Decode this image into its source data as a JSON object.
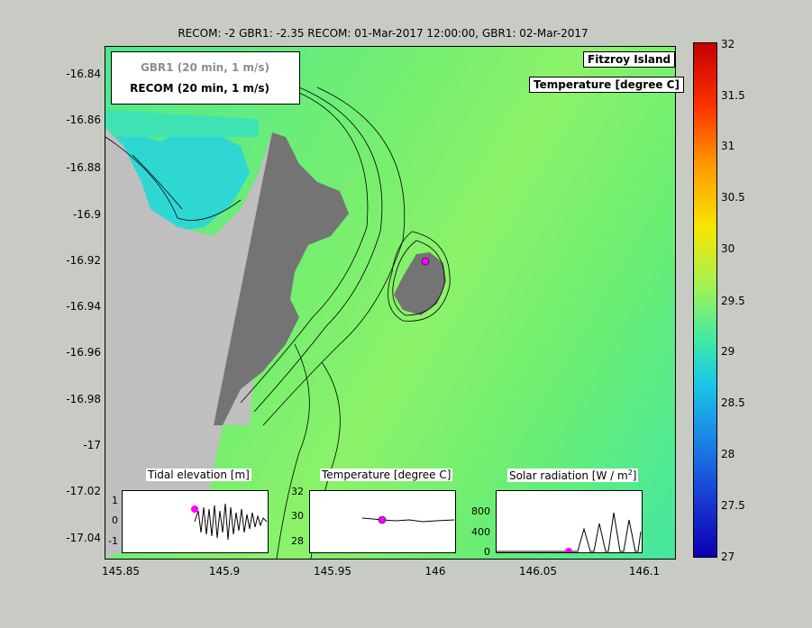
{
  "title": "RECOM: -2 GBR1: -2.35 RECOM: 01-Mar-2017 12:00:00, GBR1: 02-Mar-2017",
  "map": {
    "yticks": [
      "-16.84",
      "-16.86",
      "-16.88",
      "-16.9",
      "-16.92",
      "-16.94",
      "-16.96",
      "-16.98",
      "-17",
      "-17.02",
      "-17.04"
    ],
    "xticks": [
      "145.85",
      "145.9",
      "145.95",
      "146",
      "146.05",
      "146.1"
    ],
    "land_color": "#747474",
    "mask_color": "#bfbfbf",
    "site_marker_color": "#ff00ff"
  },
  "legend": {
    "gbr1": "GBR1  (20 min, 1 m/s)",
    "recom": "RECOM (20 min, 1 m/s)"
  },
  "tags": {
    "location": "Fitzroy Island",
    "variable": "Temperature [degree C]"
  },
  "colorbar": {
    "ticks": [
      "32",
      "31.5",
      "31",
      "30.5",
      "30",
      "29.5",
      "29",
      "28.5",
      "28",
      "27.5",
      "27"
    ],
    "range": [
      27,
      32
    ]
  },
  "insets": {
    "tide": {
      "title": "Tidal elevation [m]",
      "yticks": [
        "1",
        "0",
        "-1"
      ]
    },
    "temp": {
      "title": "Temperature [degree C]",
      "yticks": [
        "32",
        "30",
        "28"
      ]
    },
    "solar": {
      "title": "Solar radiation [W / m",
      "title_sup": "2",
      "title_end": "]",
      "yticks": [
        "800",
        "400",
        "0"
      ]
    }
  }
}
